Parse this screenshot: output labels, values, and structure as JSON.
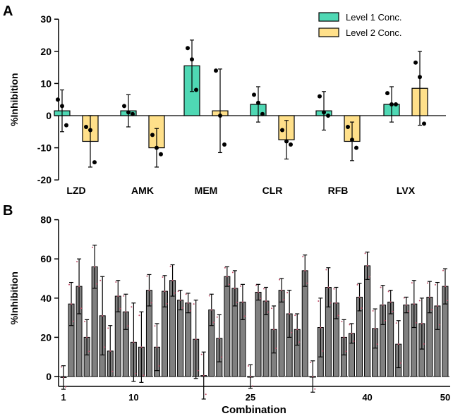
{
  "chart_data": [
    {
      "type": "bar",
      "panel_label": "A",
      "ylabel": "%Inhibition",
      "xlabel": "",
      "ylim": [
        -20,
        30
      ],
      "yticks": [
        -20,
        -10,
        0,
        10,
        20,
        30
      ],
      "categories": [
        "LZD",
        "AMK",
        "MEM",
        "CLR",
        "RFB",
        "LVX"
      ],
      "legend_position": "top-right",
      "series": [
        {
          "name": "Level 1 Conc.",
          "color": "#4fd8b4",
          "values": [
            1.5,
            1.5,
            15.5,
            3.5,
            1.5,
            3.5
          ],
          "err": [
            6.5,
            5,
            8,
            5.5,
            6,
            5.5
          ],
          "points": [
            [
              5,
              3,
              -3
            ],
            [
              3,
              1,
              0.5
            ],
            [
              21,
              17.5,
              8
            ],
            [
              6.5,
              4,
              0.5
            ],
            [
              6,
              1,
              0
            ],
            [
              7,
              3.5,
              3.5
            ]
          ]
        },
        {
          "name": "Level 2 Conc.",
          "color": "#ffe08a",
          "values": [
            -8,
            -10,
            1.5,
            -7.5,
            -8,
            8.5
          ],
          "err": [
            8,
            6,
            13,
            6,
            6,
            11.5
          ],
          "points": [
            [
              -3.5,
              -4.5,
              -14.5
            ],
            [
              -6,
              -10,
              -12
            ],
            [
              14,
              0,
              -9
            ],
            [
              -4.5,
              -8,
              -9
            ],
            [
              -3.5,
              -7.5,
              -10
            ],
            [
              16.5,
              12,
              -2.5
            ]
          ]
        }
      ]
    },
    {
      "type": "bar",
      "panel_label": "B",
      "ylabel": "%Inhibition",
      "xlabel": "Combination",
      "ylim": [
        0,
        80
      ],
      "yticks": [
        0,
        20,
        40,
        60,
        80
      ],
      "xtick_labels": {
        "1": "1",
        "10": "10",
        "25": "25",
        "40": "40",
        "50": "50"
      },
      "bar_color": "#808080",
      "point_color": "#c0506a",
      "x": [
        1,
        2,
        3,
        4,
        5,
        6,
        7,
        8,
        9,
        10,
        11,
        12,
        13,
        14,
        15,
        16,
        17,
        18,
        19,
        20,
        21,
        22,
        23,
        24,
        25,
        26,
        27,
        28,
        29,
        30,
        31,
        32,
        33,
        34,
        35,
        36,
        37,
        38,
        39,
        40,
        41,
        42,
        43,
        44,
        45,
        46,
        47,
        48,
        49,
        50
      ],
      "values": [
        -0.5,
        37,
        46,
        20,
        56,
        31,
        13,
        41,
        33,
        17.5,
        15,
        44,
        15,
        43.5,
        49,
        39,
        37.5,
        19,
        0.5,
        34,
        19.5,
        51,
        45,
        38,
        0,
        43,
        38.5,
        24,
        44,
        32,
        24,
        54,
        0,
        25,
        45.5,
        37.5,
        20,
        22,
        40.5,
        56.5,
        24.5,
        36.5,
        38,
        16.5,
        36.5,
        37,
        27,
        40.5,
        36,
        46
      ],
      "err": [
        6,
        11,
        14,
        9,
        11,
        20,
        13,
        8,
        9,
        20,
        18,
        8,
        12,
        8,
        8,
        5,
        5,
        20,
        12,
        8,
        12,
        5,
        9,
        9,
        6,
        4,
        7,
        12,
        6,
        12,
        8,
        8,
        8,
        15,
        10,
        8,
        9,
        5,
        7,
        7,
        10,
        10,
        6,
        12,
        4,
        12,
        13,
        8,
        12,
        9
      ]
    }
  ]
}
